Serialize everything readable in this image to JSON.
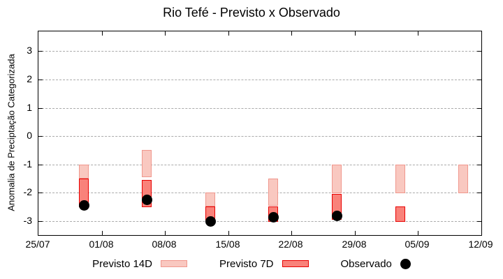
{
  "title": "Rio Tefé - Previsto x Observado",
  "colors": {
    "background": "#ffffff",
    "axis": "#000000",
    "grid": "#aaaaaa",
    "previsto_14d_fill": "#f9c8c0",
    "previsto_14d_border": "#f0978d",
    "previsto_7d_fill": "#f9827a",
    "previsto_7d_border": "#e80000",
    "observado": "#000000"
  },
  "chart_data": {
    "type": "bar",
    "subtype": "range-bars-with-scatter",
    "title": "Rio Tefé - Previsto x Observado",
    "xlabel": "",
    "ylabel": "Anomalia de Preciptação Categorizada",
    "grid": "dashed horizontal",
    "y_axis": {
      "ticks": [
        3,
        2,
        1,
        0,
        -1,
        -2,
        -3
      ],
      "range": [
        -3.5,
        3.7
      ]
    },
    "x_axis": {
      "range_days": [
        0,
        49
      ],
      "ticks": [
        {
          "day": 0,
          "label": "25/07"
        },
        {
          "day": 7,
          "label": "01/08"
        },
        {
          "day": 14,
          "label": "08/08"
        },
        {
          "day": 21,
          "label": "15/08"
        },
        {
          "day": 28,
          "label": "22/08"
        },
        {
          "day": 35,
          "label": "29/08"
        },
        {
          "day": 42,
          "label": "05/09"
        },
        {
          "day": 49,
          "label": "12/09"
        }
      ]
    },
    "series": [
      {
        "name": "Previsto 14D",
        "type": "range-bar",
        "fill": "#f9c8c0",
        "border": "#f0978d",
        "bars": [
          {
            "day": 5,
            "date": "30/07",
            "hi": -1.0,
            "lo": -1.5
          },
          {
            "day": 12,
            "date": "06/08",
            "hi": -0.5,
            "lo": -1.45
          },
          {
            "day": 19,
            "date": "13/08",
            "hi": -2.0,
            "lo": -2.5
          },
          {
            "day": 26,
            "date": "20/08",
            "hi": -1.5,
            "lo": -2.45
          },
          {
            "day": 33,
            "date": "27/08",
            "hi": -1.0,
            "lo": -2.0
          },
          {
            "day": 40,
            "date": "03/09",
            "hi": -1.0,
            "lo": -2.0
          },
          {
            "day": 47,
            "date": "10/09",
            "hi": -1.0,
            "lo": -2.0
          }
        ]
      },
      {
        "name": "Previsto 7D",
        "type": "range-bar",
        "fill": "#f9827a",
        "border": "#e80000",
        "bars": [
          {
            "day": 5,
            "date": "30/07",
            "hi": -1.5,
            "lo": -2.5
          },
          {
            "day": 12,
            "date": "06/08",
            "hi": -1.55,
            "lo": -2.5
          },
          {
            "day": 19,
            "date": "13/08",
            "hi": -2.5,
            "lo": -3.0
          },
          {
            "day": 26,
            "date": "20/08",
            "hi": -2.5,
            "lo": -3.05
          },
          {
            "day": 33,
            "date": "27/08",
            "hi": -2.05,
            "lo": -2.95
          },
          {
            "day": 40,
            "date": "03/09",
            "hi": -2.5,
            "lo": -3.05
          }
        ]
      },
      {
        "name": "Observado",
        "type": "scatter",
        "color": "#000000",
        "points": [
          {
            "day": 5,
            "date": "30/07",
            "value": -2.45
          },
          {
            "day": 12,
            "date": "06/08",
            "value": -2.25
          },
          {
            "day": 19,
            "date": "13/08",
            "value": -3.0
          },
          {
            "day": 26,
            "date": "20/08",
            "value": -2.85
          },
          {
            "day": 33,
            "date": "27/08",
            "value": -2.8
          }
        ]
      }
    ],
    "legend": {
      "position": "bottom-center",
      "items": [
        "Previsto 14D",
        "Previsto 7D",
        "Observado"
      ]
    }
  }
}
